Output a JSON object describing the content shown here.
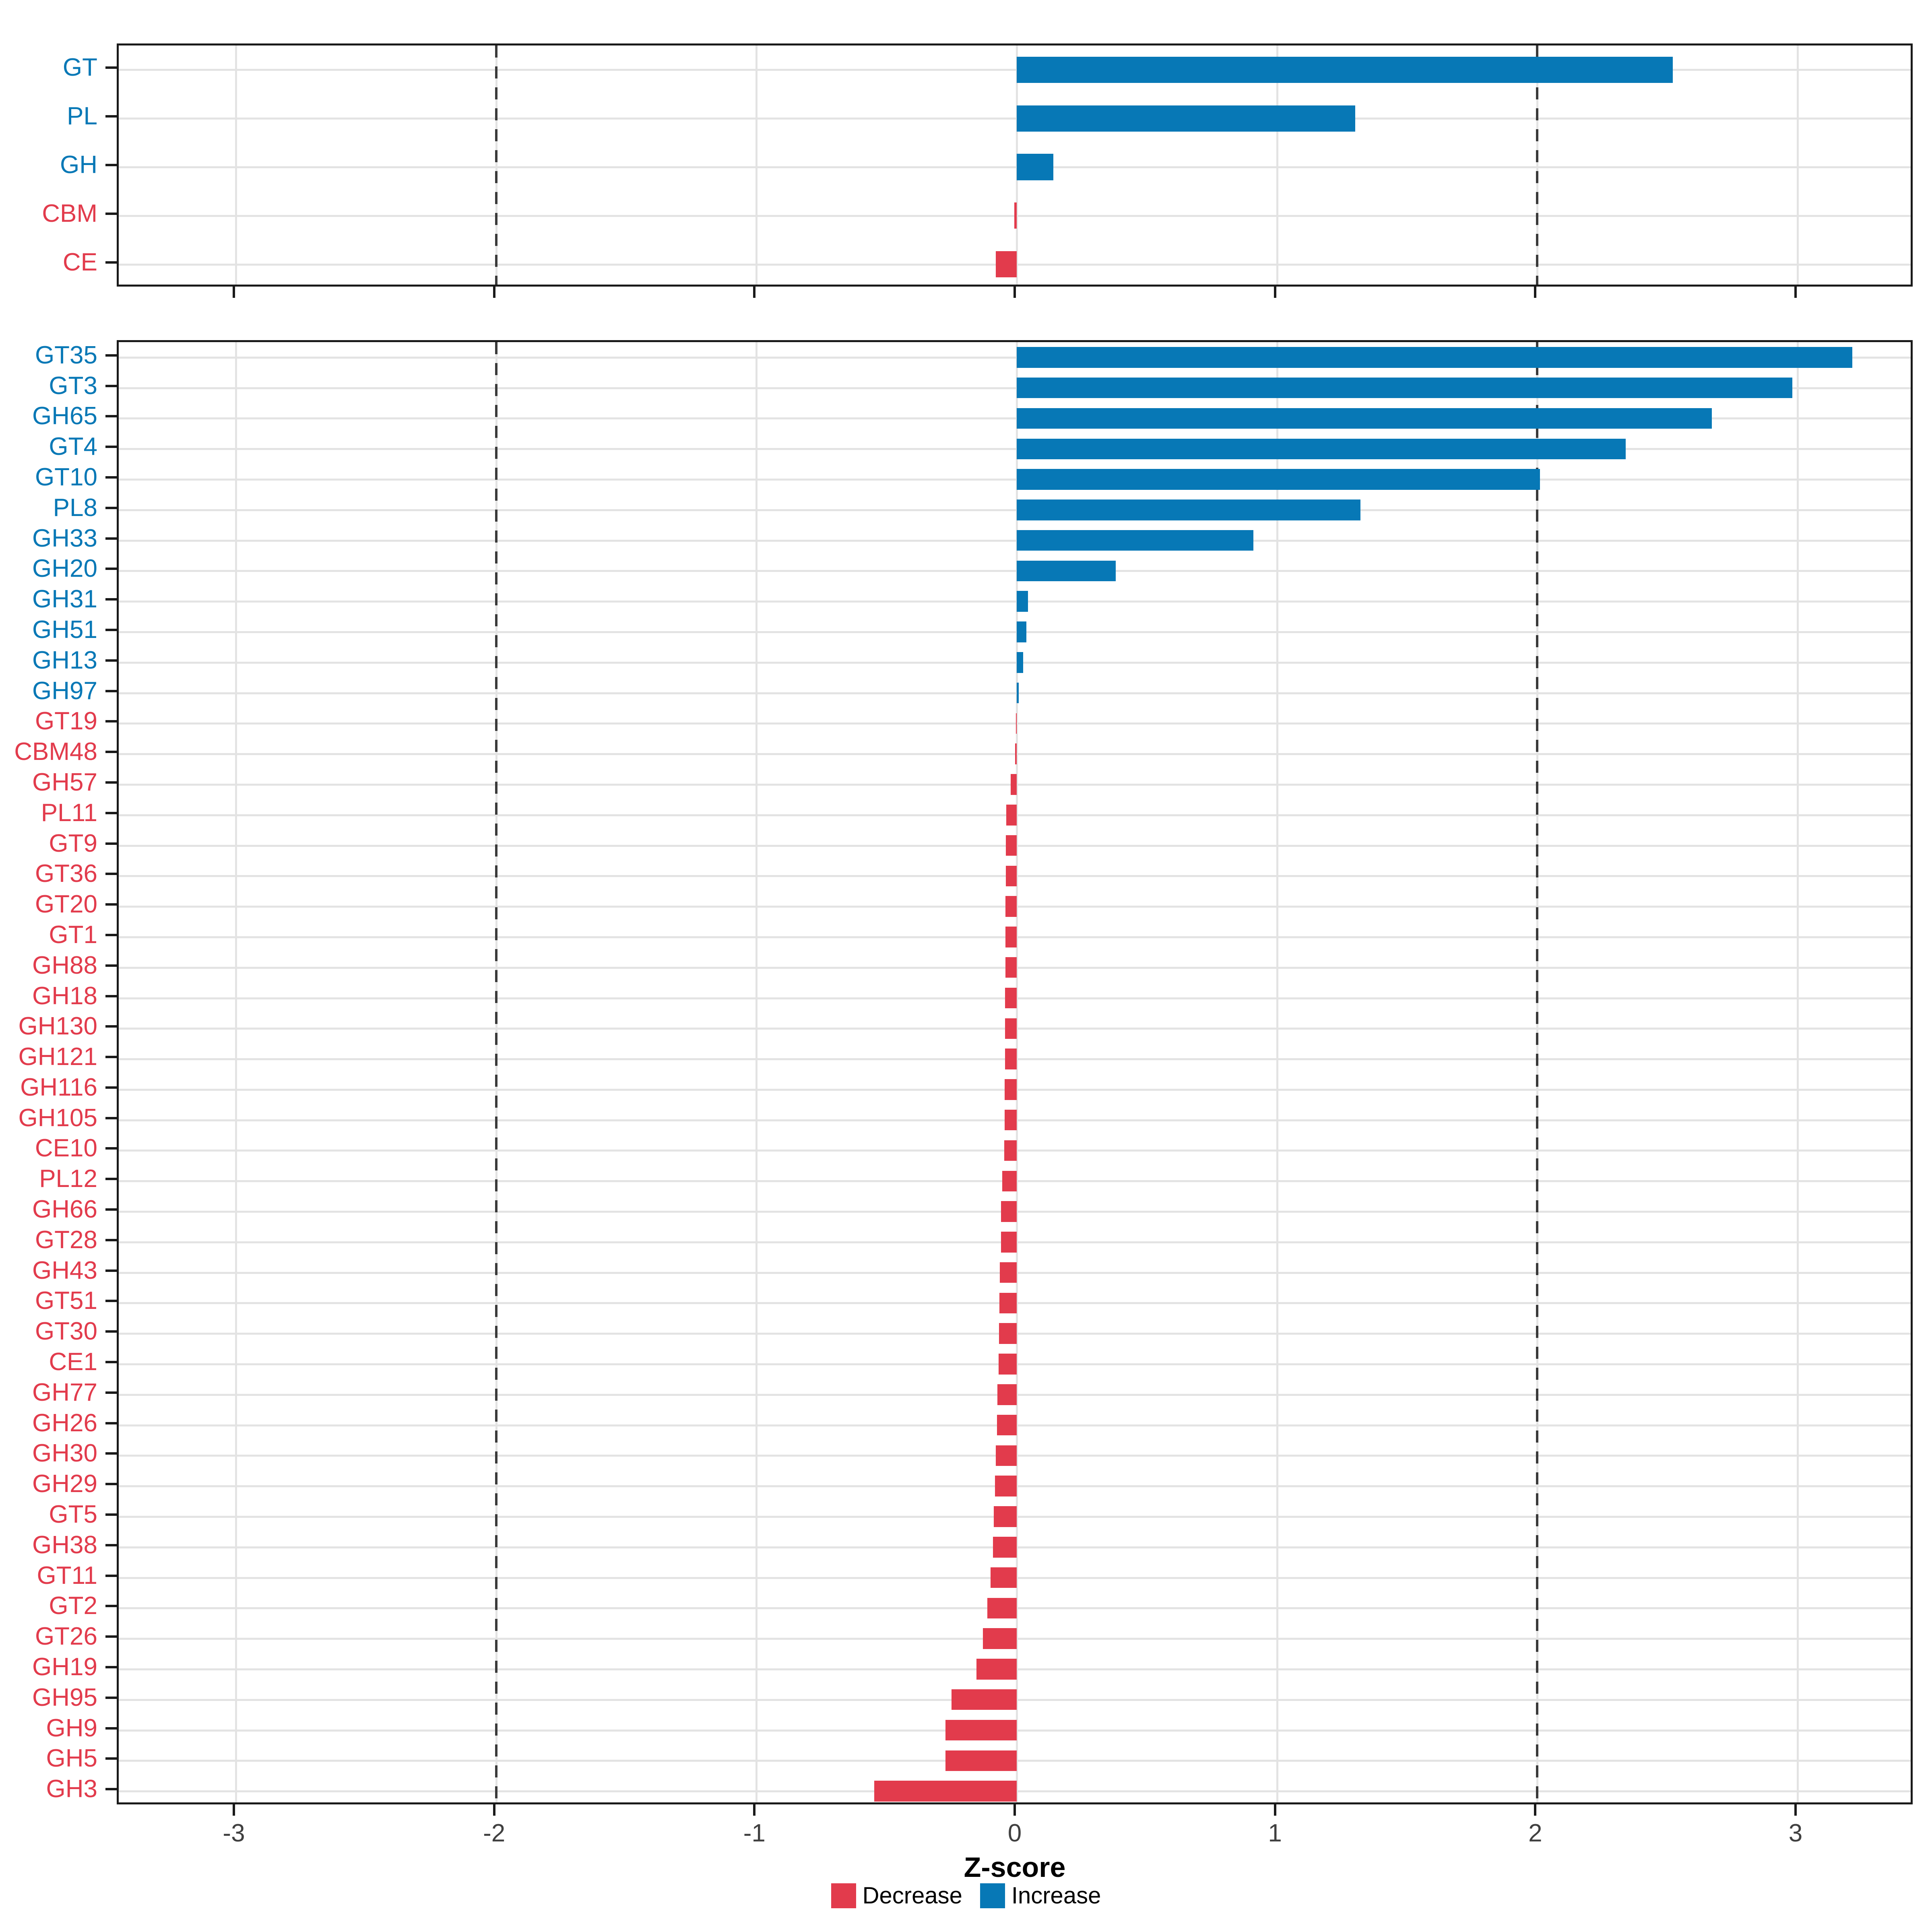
{
  "chart_data": {
    "type": "bar",
    "orientation": "horizontal",
    "title": "",
    "xlabel": "Z-score",
    "ylabel": "",
    "x_ticks": [
      -3,
      -2,
      -1,
      0,
      1,
      2,
      3
    ],
    "x_range": [
      -3.45,
      3.45
    ],
    "reference_lines": [
      -2,
      2
    ],
    "grid": true,
    "legend_position": "bottom",
    "colors": {
      "increase": "#0778b6",
      "decrease": "#e23b4c",
      "grid": "#e3e3e3",
      "axis_text": "#404040",
      "reference_line": "#3a3a3a",
      "panel_border": "#1a1a1a"
    },
    "legend": [
      {
        "key": "decrease",
        "label": "Decrease"
      },
      {
        "key": "increase",
        "label": "Increase"
      }
    ],
    "panels": [
      {
        "name": "families",
        "categories": [
          "GT",
          "PL",
          "GH",
          "CBM",
          "CE"
        ],
        "values": [
          2.52,
          1.3,
          0.14,
          -0.01,
          -0.08
        ]
      },
      {
        "name": "subfamilies",
        "categories": [
          "GT35",
          "GT3",
          "GH65",
          "GT4",
          "GT10",
          "PL8",
          "GH33",
          "GH20",
          "GH31",
          "GH51",
          "GH13",
          "GH97",
          "GT19",
          "CBM48",
          "GH57",
          "PL11",
          "GT9",
          "GT36",
          "GT20",
          "GT1",
          "GH88",
          "GH18",
          "GH130",
          "GH121",
          "GH116",
          "GH105",
          "CE10",
          "PL12",
          "GH66",
          "GT28",
          "GH43",
          "GT51",
          "GT30",
          "CE1",
          "GH77",
          "GH26",
          "GH30",
          "GH29",
          "GT5",
          "GH38",
          "GT11",
          "GT2",
          "GT26",
          "GH19",
          "GH95",
          "GH9",
          "GH5",
          "GH3"
        ],
        "values": [
          3.21,
          2.98,
          2.67,
          2.34,
          2.01,
          1.32,
          0.91,
          0.38,
          0.043,
          0.037,
          0.025,
          0.008,
          -0.002,
          -0.006,
          -0.023,
          -0.04,
          -0.042,
          -0.042,
          -0.043,
          -0.043,
          -0.044,
          -0.045,
          -0.045,
          -0.045,
          -0.046,
          -0.046,
          -0.048,
          -0.056,
          -0.06,
          -0.06,
          -0.065,
          -0.067,
          -0.068,
          -0.07,
          -0.074,
          -0.076,
          -0.08,
          -0.084,
          -0.088,
          -0.092,
          -0.1,
          -0.113,
          -0.13,
          -0.155,
          -0.25,
          -0.274,
          -0.274,
          -0.548
        ]
      }
    ]
  }
}
